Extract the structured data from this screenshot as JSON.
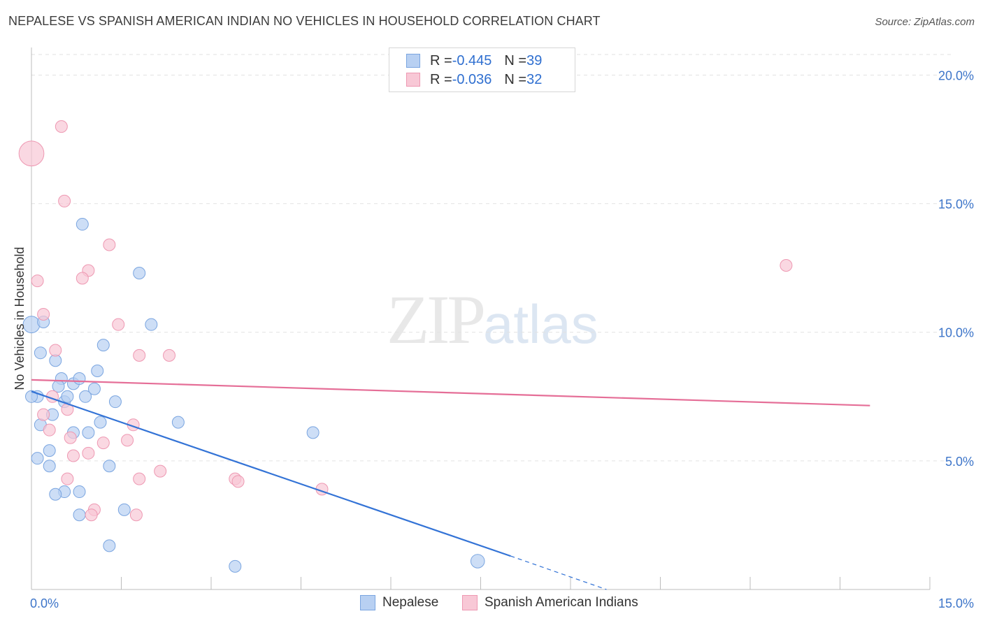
{
  "header": {
    "title": "NEPALESE VS SPANISH AMERICAN INDIAN NO VEHICLES IN HOUSEHOLD CORRELATION CHART",
    "source": "Source: ZipAtlas.com"
  },
  "watermark": {
    "zip": "ZIP",
    "atlas": "atlas"
  },
  "legend": {
    "rows": [
      {
        "r_label": "R = ",
        "r_value": "-0.445",
        "n_label": "N = ",
        "n_value": "39"
      },
      {
        "r_label": "R = ",
        "r_value": "-0.036",
        "n_label": "N = ",
        "n_value": "32"
      }
    ]
  },
  "bottom_legend": {
    "series1": "Nepalese",
    "series2": "Spanish American Indians"
  },
  "colors": {
    "nepalese_fill": "#b8d0f2",
    "nepalese_stroke": "#7aa5e0",
    "nepalese_line": "#3373d6",
    "spanish_fill": "#f8c8d6",
    "spanish_stroke": "#ee98b2",
    "spanish_line": "#e56e97",
    "tick_label": "#3d75c9",
    "grid": "#e2e2e2"
  },
  "chart_data": {
    "type": "scatter",
    "title": "NEPALESE VS SPANISH AMERICAN INDIAN NO VEHICLES IN HOUSEHOLD CORRELATION CHART",
    "xlabel": "",
    "ylabel": "No Vehicles in Household",
    "xlim": [
      0,
      15
    ],
    "ylim": [
      0,
      20.8
    ],
    "x_tick_labels": [
      "0.0%",
      "15.0%"
    ],
    "y_ticks": [
      5,
      10,
      15,
      20
    ],
    "y_tick_labels": [
      "5.0%",
      "10.0%",
      "15.0%",
      "20.0%"
    ],
    "grid": true,
    "series": [
      {
        "name": "Nepalese",
        "points": [
          [
            0.0,
            10.3
          ],
          [
            0.2,
            10.4
          ],
          [
            0.1,
            7.5
          ],
          [
            0.15,
            9.2
          ],
          [
            0.4,
            8.9
          ],
          [
            0.5,
            8.2
          ],
          [
            0.45,
            7.9
          ],
          [
            0.55,
            7.3
          ],
          [
            0.6,
            7.5
          ],
          [
            0.7,
            8.0
          ],
          [
            0.8,
            8.2
          ],
          [
            0.9,
            7.5
          ],
          [
            1.05,
            7.8
          ],
          [
            1.1,
            8.5
          ],
          [
            1.2,
            9.5
          ],
          [
            1.4,
            7.3
          ],
          [
            1.8,
            12.3
          ],
          [
            2.0,
            10.3
          ],
          [
            0.85,
            14.2
          ],
          [
            0.15,
            6.4
          ],
          [
            0.35,
            6.8
          ],
          [
            0.7,
            6.1
          ],
          [
            0.95,
            6.1
          ],
          [
            1.15,
            6.5
          ],
          [
            0.3,
            5.4
          ],
          [
            0.1,
            5.1
          ],
          [
            0.3,
            4.8
          ],
          [
            1.3,
            4.8
          ],
          [
            0.55,
            3.8
          ],
          [
            0.8,
            3.8
          ],
          [
            0.4,
            3.7
          ],
          [
            0.8,
            2.9
          ],
          [
            1.55,
            3.1
          ],
          [
            1.3,
            1.7
          ],
          [
            2.45,
            6.5
          ],
          [
            4.7,
            6.1
          ],
          [
            3.4,
            0.9
          ],
          [
            7.45,
            1.1
          ],
          [
            0.0,
            7.5
          ]
        ],
        "sizes": [
          1.4,
          1,
          1,
          1,
          1,
          1,
          1,
          1,
          1,
          1,
          1,
          1,
          1,
          1,
          1,
          1,
          1,
          1,
          1,
          1,
          1,
          1,
          1,
          1,
          1,
          1,
          1,
          1,
          1,
          1,
          1,
          1,
          1,
          1,
          1,
          1,
          1,
          1.15,
          1
        ],
        "trend_line": {
          "x": [
            0.0,
            8.0
          ],
          "y": [
            7.7,
            1.3
          ]
        },
        "trend_extension": {
          "x": [
            8.0,
            9.6
          ],
          "y": [
            1.3,
            0.0
          ]
        }
      },
      {
        "name": "Spanish American Indians",
        "points": [
          [
            0.0,
            16.95
          ],
          [
            0.5,
            18.0
          ],
          [
            0.55,
            15.1
          ],
          [
            0.1,
            12.0
          ],
          [
            0.2,
            10.7
          ],
          [
            0.95,
            12.4
          ],
          [
            0.85,
            12.1
          ],
          [
            1.3,
            13.4
          ],
          [
            1.45,
            10.3
          ],
          [
            1.8,
            9.1
          ],
          [
            2.3,
            9.1
          ],
          [
            0.4,
            9.3
          ],
          [
            0.35,
            7.5
          ],
          [
            0.6,
            7.0
          ],
          [
            0.2,
            6.8
          ],
          [
            0.3,
            6.2
          ],
          [
            0.65,
            5.9
          ],
          [
            0.7,
            5.2
          ],
          [
            0.95,
            5.3
          ],
          [
            1.2,
            5.7
          ],
          [
            1.6,
            5.8
          ],
          [
            1.7,
            6.4
          ],
          [
            0.6,
            4.3
          ],
          [
            1.8,
            4.3
          ],
          [
            2.15,
            4.6
          ],
          [
            3.4,
            4.3
          ],
          [
            3.45,
            4.2
          ],
          [
            4.85,
            3.9
          ],
          [
            1.05,
            3.1
          ],
          [
            1.0,
            2.9
          ],
          [
            1.75,
            2.9
          ],
          [
            12.6,
            12.6
          ]
        ],
        "sizes": [
          2.1,
          1,
          1,
          1,
          1,
          1,
          1,
          1,
          1,
          1,
          1,
          1,
          1,
          1,
          1,
          1,
          1,
          1,
          1,
          1,
          1,
          1,
          1,
          1,
          1,
          1,
          1,
          1,
          1,
          1,
          1,
          1
        ],
        "trend_line": {
          "x": [
            0.0,
            14.0
          ],
          "y": [
            8.15,
            7.15
          ]
        }
      }
    ]
  }
}
